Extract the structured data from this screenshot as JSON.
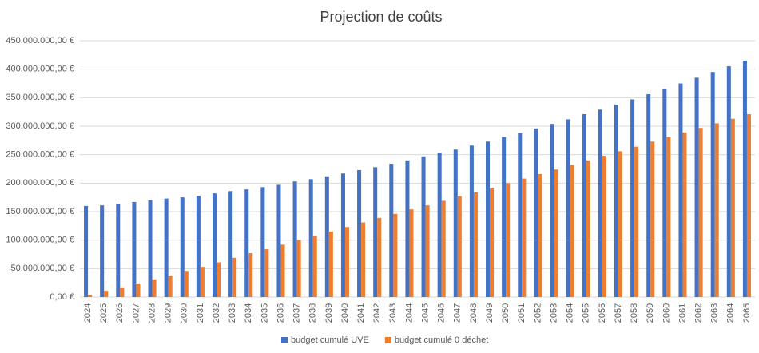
{
  "chart_data": {
    "type": "bar",
    "title": "Projection de coûts",
    "categories": [
      "2024",
      "2025",
      "2026",
      "2027",
      "2028",
      "2029",
      "2030",
      "2031",
      "2032",
      "2033",
      "2034",
      "2035",
      "2036",
      "2037",
      "2038",
      "2039",
      "2040",
      "2041",
      "2042",
      "2043",
      "2044",
      "2045",
      "2046",
      "2047",
      "2048",
      "2049",
      "2050",
      "2051",
      "2052",
      "2053",
      "2054",
      "2055",
      "2056",
      "2057",
      "2058",
      "2059",
      "2060",
      "2061",
      "2062",
      "2063",
      "2064",
      "2065"
    ],
    "series": [
      {
        "name": "budget cumulé UVE",
        "color": "#4472c4",
        "values": [
          160000000,
          161000000,
          164000000,
          167000000,
          170000000,
          173000000,
          175000000,
          178000000,
          182000000,
          186000000,
          189000000,
          193000000,
          197000000,
          203000000,
          207000000,
          212000000,
          217000000,
          223000000,
          228000000,
          234000000,
          240000000,
          247000000,
          253000000,
          259000000,
          266000000,
          273000000,
          281000000,
          288000000,
          296000000,
          304000000,
          312000000,
          321000000,
          329000000,
          338000000,
          347000000,
          356000000,
          365000000,
          375000000,
          385000000,
          395000000,
          405000000,
          415000000
        ]
      },
      {
        "name": "budget cumulé 0 déchet",
        "color": "#ed7d31",
        "values": [
          4000000,
          11000000,
          17000000,
          24000000,
          31000000,
          38000000,
          46000000,
          53000000,
          61000000,
          69000000,
          77000000,
          84000000,
          92000000,
          100000000,
          107000000,
          115000000,
          123000000,
          131000000,
          139000000,
          146000000,
          154000000,
          161000000,
          169000000,
          177000000,
          184000000,
          192000000,
          200000000,
          208000000,
          216000000,
          224000000,
          232000000,
          240000000,
          248000000,
          256000000,
          264000000,
          273000000,
          281000000,
          289000000,
          297000000,
          305000000,
          313000000,
          321000000
        ]
      }
    ],
    "ylim": [
      0,
      450000000
    ],
    "yticks": [
      {
        "value": 0,
        "label": "0,00 €"
      },
      {
        "value": 50000000,
        "label": "50.000.000,00 €"
      },
      {
        "value": 100000000,
        "label": "100.000.000,00 €"
      },
      {
        "value": 150000000,
        "label": "150.000.000,00 €"
      },
      {
        "value": 200000000,
        "label": "200.000.000,00 €"
      },
      {
        "value": 250000000,
        "label": "250.000.000,00 €"
      },
      {
        "value": 300000000,
        "label": "300.000.000,00 €"
      },
      {
        "value": 350000000,
        "label": "350.000.000,00 €"
      },
      {
        "value": 400000000,
        "label": "400.000.000,00 €"
      },
      {
        "value": 450000000,
        "label": "450.000.000,00 €"
      }
    ],
    "grid": true,
    "legend": "bottom"
  }
}
